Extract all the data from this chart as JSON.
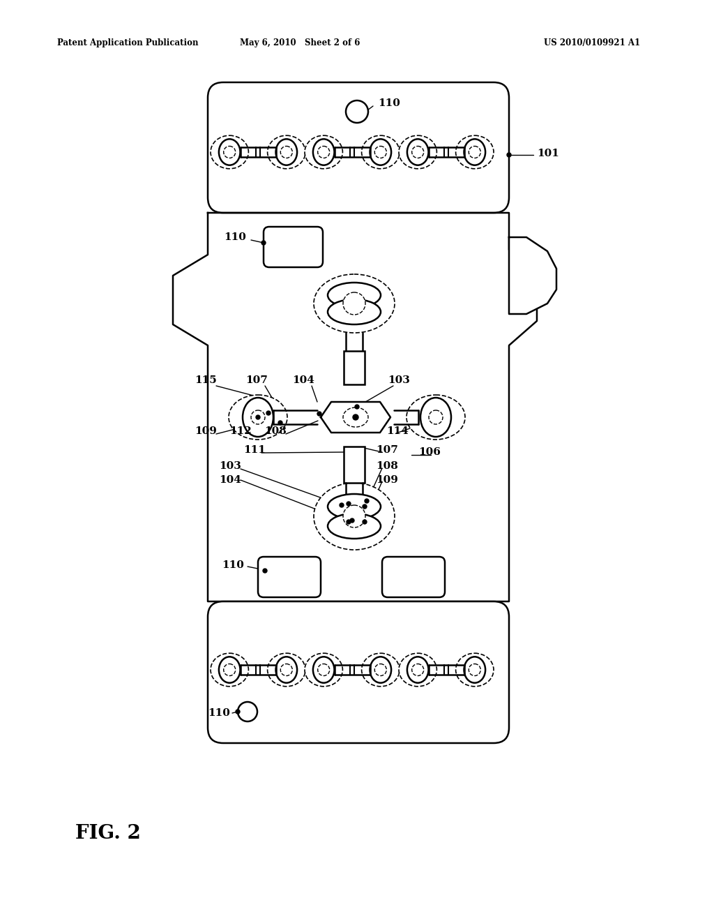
{
  "title_left": "Patent Application Publication",
  "title_center": "May 6, 2010   Sheet 2 of 6",
  "title_right": "US 2010/0109921 A1",
  "fig_label": "FIG. 2",
  "bg_color": "#ffffff",
  "line_color": "#000000"
}
